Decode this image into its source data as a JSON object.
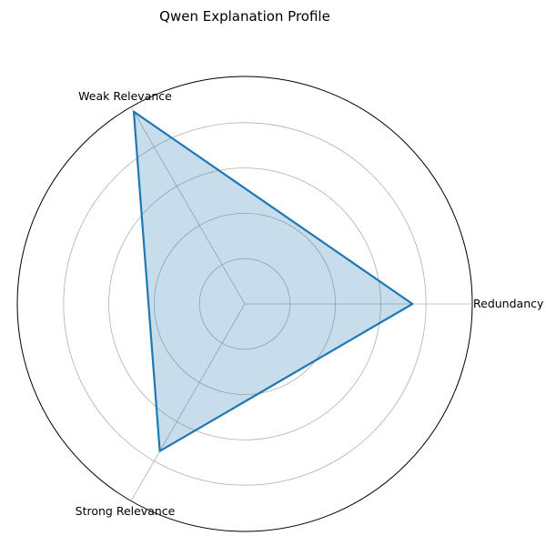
{
  "chart_data": {
    "type": "radar",
    "title": "Qwen Explanation Profile",
    "categories": [
      "Redundancy",
      "Weak Relevance",
      "Strong Relevance"
    ],
    "series": [
      {
        "values": [
          0.74,
          0.98,
          0.75
        ]
      }
    ],
    "rlim": [
      0,
      1
    ],
    "rgrid": [
      0.2,
      0.4,
      0.6,
      0.8
    ],
    "grid": true,
    "colors": {
      "line": "#1f77b4",
      "fill": "#1f77b4",
      "grid": "#b0b0b0",
      "frame": "#000000"
    }
  }
}
